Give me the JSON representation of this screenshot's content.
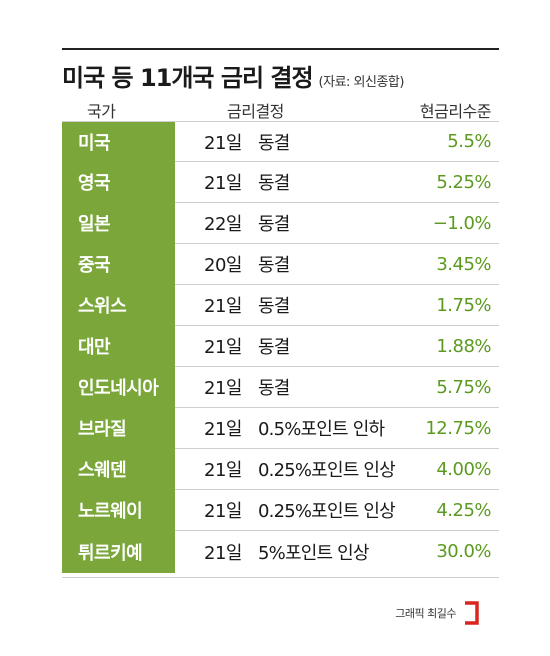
{
  "title": {
    "main": "미국 등 11개국 금리 결정",
    "source": "(자료: 외신종합)"
  },
  "header": {
    "country": "국가",
    "decision": "금리결정",
    "rate": "현금리수준"
  },
  "rows": [
    {
      "country": "미국",
      "day": "21일",
      "decision": "동결",
      "rate": "5.5%"
    },
    {
      "country": "영국",
      "day": "21일",
      "decision": "동결",
      "rate": "5.25%"
    },
    {
      "country": "일본",
      "day": "22일",
      "decision": "동결",
      "rate": "−1.0%"
    },
    {
      "country": "중국",
      "day": "20일",
      "decision": "동결",
      "rate": "3.45%"
    },
    {
      "country": "스위스",
      "day": "21일",
      "decision": "동결",
      "rate": "1.75%"
    },
    {
      "country": "대만",
      "day": "21일",
      "decision": "동결",
      "rate": "1.88%"
    },
    {
      "country": "인도네시아",
      "day": "21일",
      "decision": "동결",
      "rate": "5.75%"
    },
    {
      "country": "브라질",
      "day": "21일",
      "decision": "0.5%포인트 인하",
      "rate": "12.75%"
    },
    {
      "country": "스웨덴",
      "day": "21일",
      "decision": "0.25%포인트 인상",
      "rate": "4.00%"
    },
    {
      "country": "노르웨이",
      "day": "21일",
      "decision": "0.25%포인트 인상",
      "rate": "4.25%"
    },
    {
      "country": "튀르키예",
      "day": "21일",
      "decision": "5%포인트 인상",
      "rate": "30.0%"
    }
  ],
  "credit": {
    "text": "그래픽 최길수",
    "logo_icon": "bracket-logo-icon",
    "logo_color": "#d9251d"
  },
  "colors": {
    "country_bg": "#7aa63a",
    "rate_text": "#5c9a1f"
  }
}
